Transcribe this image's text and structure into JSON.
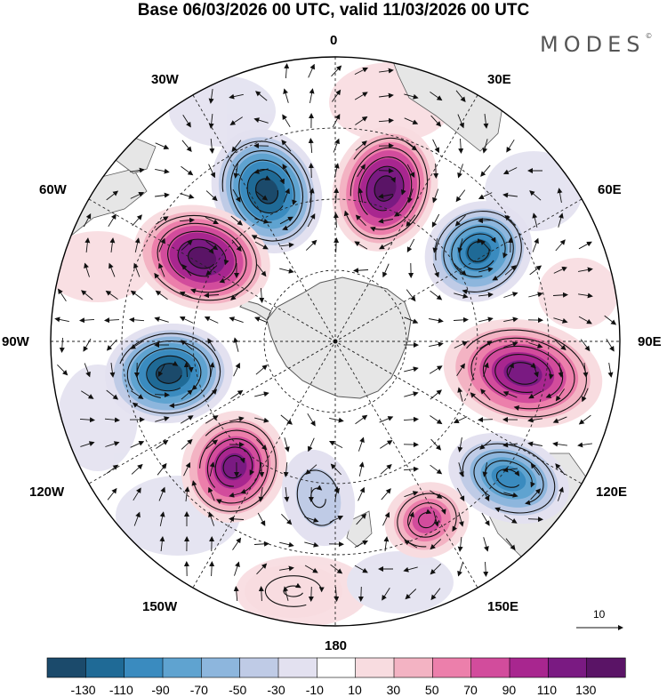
{
  "title": "Base 06/03/2026 00 UTC, valid 11/03/2026 00 UTC",
  "brand": "MODES",
  "brand_mark": "©",
  "longitude_labels": {
    "lon_0": "0",
    "lon_30e": "30E",
    "lon_60e": "60E",
    "lon_90e": "90E",
    "lon_120e": "120E",
    "lon_150e": "150E",
    "lon_180": "180",
    "lon_150w": "150W",
    "lon_120w": "120W",
    "lon_90w": "90W",
    "lon_60w": "60W",
    "lon_30w": "30W"
  },
  "colorbar": {
    "labels": [
      "-130",
      "-110",
      "-90",
      "-70",
      "-50",
      "-30",
      "-10",
      "10",
      "30",
      "50",
      "70",
      "90",
      "110",
      "130"
    ],
    "colors": [
      "#1b4a6b",
      "#1f6a96",
      "#3a8bbf",
      "#5fa3d0",
      "#8db6dd",
      "#bfcbe6",
      "#e3e1f0",
      "#ffffff",
      "#f8dce0",
      "#f3b3c3",
      "#ec7fab",
      "#d24c9c",
      "#a8268f",
      "#7a1a82",
      "#5a1466"
    ]
  },
  "vector_scale": {
    "label": "10"
  },
  "colors": {
    "land": "#e6e6e6",
    "coast": "#5a5a5a",
    "grid": "#222222",
    "arrow": "#111111"
  }
}
